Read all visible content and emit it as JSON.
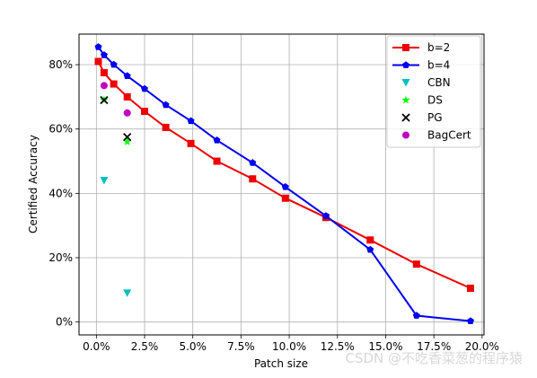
{
  "chart_data": {
    "type": "line",
    "xlabel": "Patch size",
    "ylabel": "Certified Accuracy",
    "xlim": [
      -0.009,
      0.201
    ],
    "ylim": [
      -0.04,
      0.895
    ],
    "x_ticks": [
      0.0,
      0.025,
      0.05,
      0.075,
      0.1,
      0.125,
      0.15,
      0.175,
      0.2
    ],
    "x_tick_labels": [
      "0.0%",
      "2.5%",
      "5.0%",
      "7.5%",
      "10.0%",
      "12.5%",
      "15.0%",
      "17.5%",
      "20.0%"
    ],
    "y_ticks": [
      0.0,
      0.2,
      0.4,
      0.6,
      0.8
    ],
    "y_tick_labels": [
      "0%",
      "20%",
      "40%",
      "60%",
      "80%"
    ],
    "grid": true,
    "legend_position": "top-right",
    "series": [
      {
        "name": "b=2",
        "kind": "line",
        "color": "#ee0000",
        "marker": "square",
        "x": [
          0.001,
          0.004,
          0.009,
          0.016,
          0.025,
          0.036,
          0.049,
          0.0625,
          0.081,
          0.098,
          0.119,
          0.142,
          0.166,
          0.194
        ],
        "y": [
          0.81,
          0.775,
          0.74,
          0.7,
          0.655,
          0.605,
          0.555,
          0.5,
          0.445,
          0.385,
          0.325,
          0.255,
          0.18,
          0.105
        ]
      },
      {
        "name": "b=4",
        "kind": "line",
        "color": "#0000ee",
        "marker": "pentagon",
        "x": [
          0.001,
          0.004,
          0.009,
          0.016,
          0.025,
          0.036,
          0.049,
          0.0625,
          0.081,
          0.098,
          0.119,
          0.142,
          0.166,
          0.194
        ],
        "y": [
          0.855,
          0.83,
          0.8,
          0.765,
          0.725,
          0.675,
          0.625,
          0.565,
          0.495,
          0.42,
          0.33,
          0.225,
          0.02,
          0.003
        ]
      },
      {
        "name": "CBN",
        "kind": "scatter",
        "color": "#00bfbf",
        "marker": "triangle-down",
        "x": [
          0.004,
          0.016
        ],
        "y": [
          0.44,
          0.09
        ]
      },
      {
        "name": "DS",
        "kind": "scatter",
        "color": "#00ff00",
        "marker": "star",
        "x": [
          0.004,
          0.016
        ],
        "y": [
          0.69,
          0.56
        ]
      },
      {
        "name": "PG",
        "kind": "scatter",
        "color": "#000000",
        "marker": "x",
        "x": [
          0.004,
          0.016
        ],
        "y": [
          0.69,
          0.575
        ]
      },
      {
        "name": "BagCert",
        "kind": "scatter",
        "color": "#bf00bf",
        "marker": "circle",
        "x": [
          0.004,
          0.016
        ],
        "y": [
          0.735,
          0.65
        ]
      }
    ]
  },
  "watermark": "CSDN @不吃香菜葱的程序猿"
}
